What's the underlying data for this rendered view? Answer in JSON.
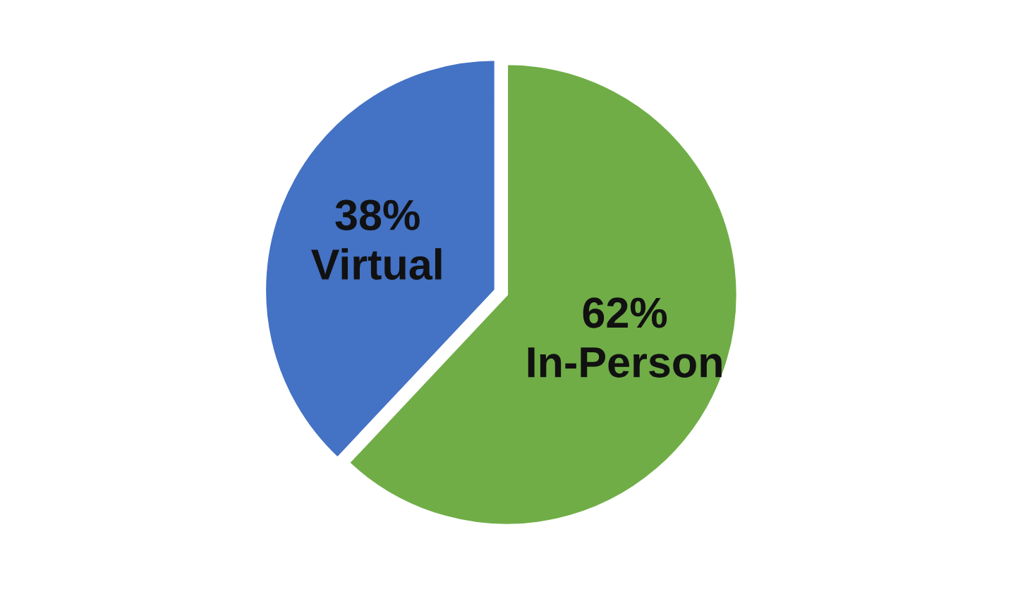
{
  "chart_data": {
    "type": "pie",
    "categories": [
      "Virtual",
      "In-Person"
    ],
    "values": [
      38,
      62
    ],
    "value_labels": [
      "38%",
      "62%"
    ],
    "colors": [
      "#4472c4",
      "#70ad47"
    ]
  }
}
